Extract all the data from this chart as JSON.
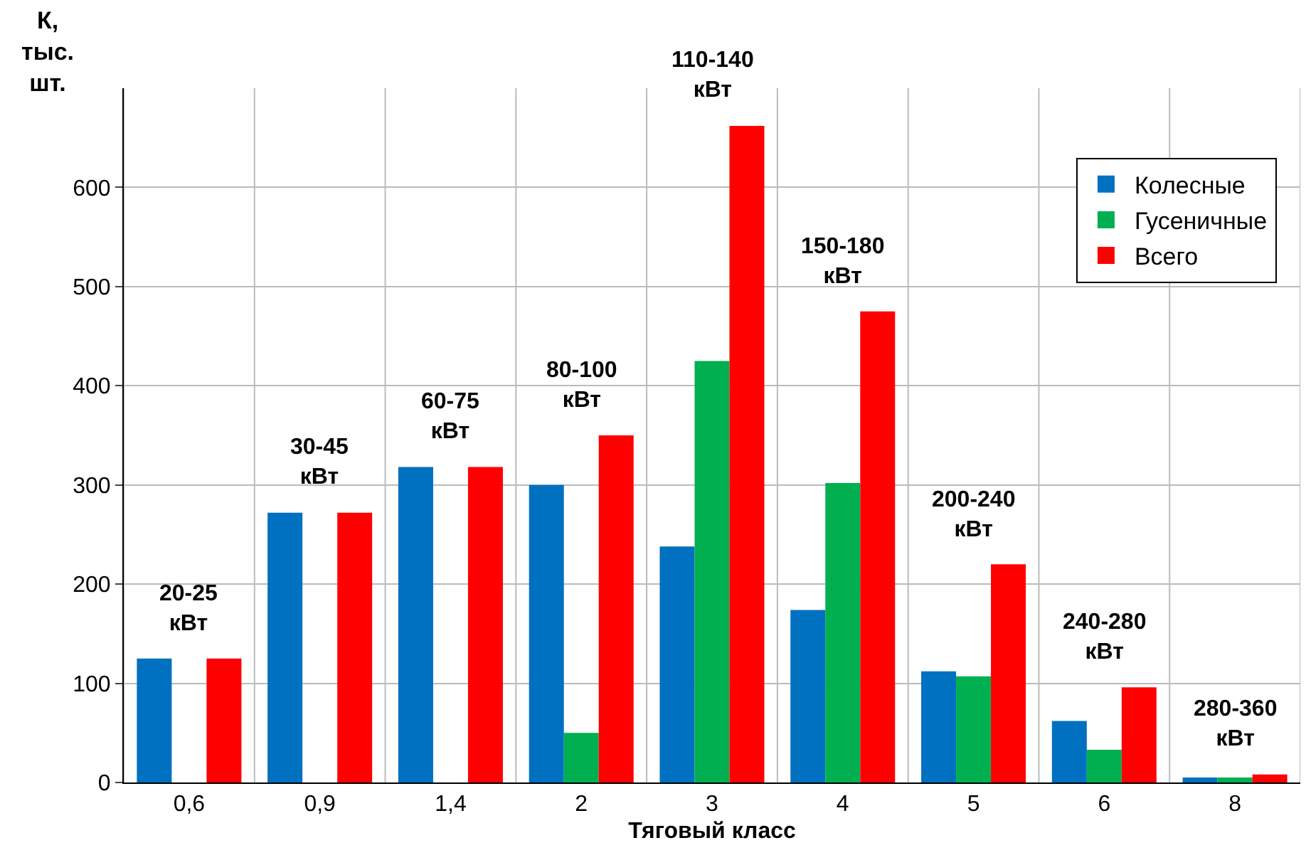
{
  "chart_data": {
    "type": "bar",
    "xlabel": "Тяговый класс",
    "ylabel": "К, тыс. шт.",
    "categories": [
      "0,6",
      "0,9",
      "1,4",
      "2",
      "3",
      "4",
      "5",
      "6",
      "8"
    ],
    "series": [
      {
        "name": "Колесные",
        "color": "#0070c0",
        "values": [
          125,
          272,
          318,
          300,
          238,
          174,
          112,
          62,
          5
        ]
      },
      {
        "name": "Гусеничные",
        "color": "#00b050",
        "values": [
          null,
          null,
          null,
          50,
          425,
          302,
          107,
          33,
          5
        ]
      },
      {
        "name": "Всего",
        "color": "#ff0000",
        "values": [
          125,
          272,
          318,
          350,
          662,
          475,
          220,
          96,
          8
        ]
      }
    ],
    "ylim": [
      0,
      700
    ],
    "yticks": [
      0,
      100,
      200,
      300,
      400,
      500,
      600
    ],
    "grid": true,
    "legend": "top right",
    "annotations": [
      "20-25\nкВт",
      "30-45\nкВт",
      "60-75\nкВт",
      "80-100\nкВт",
      "110-140\nкВт",
      "150-180\nкВт",
      "200-240\nкВт",
      "240-280\nкВт",
      "280-360\nкВт"
    ]
  }
}
